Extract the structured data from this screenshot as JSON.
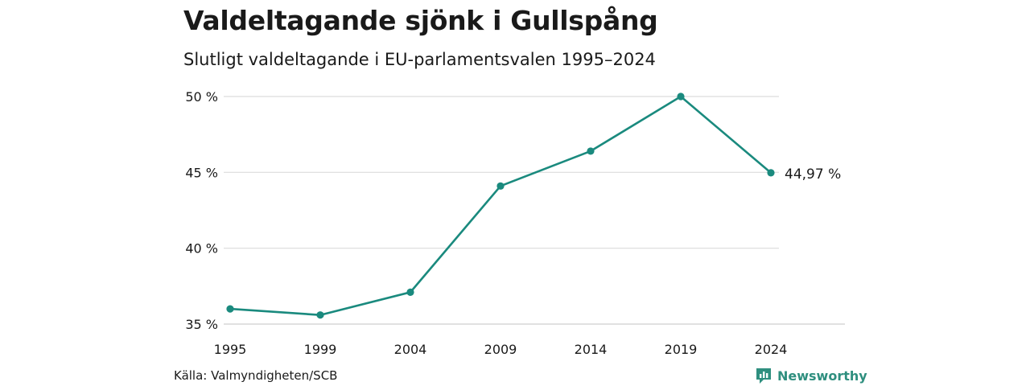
{
  "title": "Valdeltagande sjönk i Gullspång",
  "subtitle": "Slutligt valdeltagande i EU-parlamentsvalen 1995–2024",
  "source": "Källa: Valmyndigheten/SCB",
  "brand": {
    "name": "Newsworthy",
    "icon": "newsworthy-logo-icon",
    "color": "#2f8f7f"
  },
  "colors": {
    "line": "#1a8a7e",
    "grid": "#dcdcdc"
  },
  "chart_data": {
    "type": "line",
    "title": "Valdeltagande sjönk i Gullspång",
    "subtitle": "Slutligt valdeltagande i EU-parlamentsvalen 1995–2024",
    "categories": [
      "1995",
      "1999",
      "2004",
      "2009",
      "2014",
      "2019",
      "2024"
    ],
    "values": [
      36.0,
      35.6,
      37.1,
      44.1,
      46.4,
      50.0,
      44.97
    ],
    "y_ticks": [
      "35 %",
      "40 %",
      "45 %",
      "50 %"
    ],
    "ylim": [
      35,
      50
    ],
    "grid": true,
    "end_label": "44,97 %"
  }
}
